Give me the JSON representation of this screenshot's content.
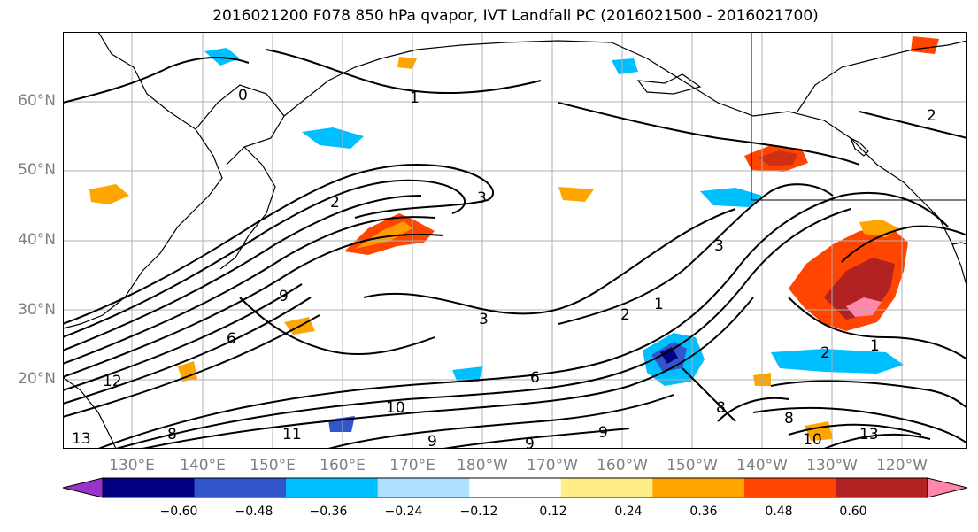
{
  "title": "2016021200 F078 850 hPa qvapor, IVT Landfall PC (2016021500 - 2016021700)",
  "lat_labels": [
    "60°N",
    "50°N",
    "40°N",
    "30°N",
    "20°N"
  ],
  "lon_labels": [
    "130°E",
    "140°E",
    "150°E",
    "160°E",
    "170°E",
    "180°W",
    "170°W",
    "160°W",
    "150°W",
    "140°W",
    "130°W",
    "120°W"
  ],
  "contour_labels": [
    "0",
    "1",
    "2",
    "3",
    "3",
    "6",
    "8",
    "9",
    "10",
    "11",
    "12",
    "13",
    "1",
    "2",
    "3",
    "8",
    "9",
    "2",
    "1",
    "8",
    "10",
    "2",
    "6",
    "9",
    "9",
    "13"
  ],
  "colorbar": {
    "colors": [
      "#9933cc",
      "#000080",
      "#3355cc",
      "#00bfff",
      "#b0e0ff",
      "#ffffff",
      "#ffee88",
      "#ffa500",
      "#ff4500",
      "#b22222",
      "#ff88aa"
    ],
    "tick_labels": [
      "−0.60",
      "−0.48",
      "−0.36",
      "−0.24",
      "−0.12",
      "0.12",
      "0.24",
      "0.36",
      "0.48",
      "0.60"
    ]
  },
  "colors": {
    "land_outline": "#000000",
    "gridlines": "#b0b0b0",
    "axis_label": "#7f7f7f"
  }
}
